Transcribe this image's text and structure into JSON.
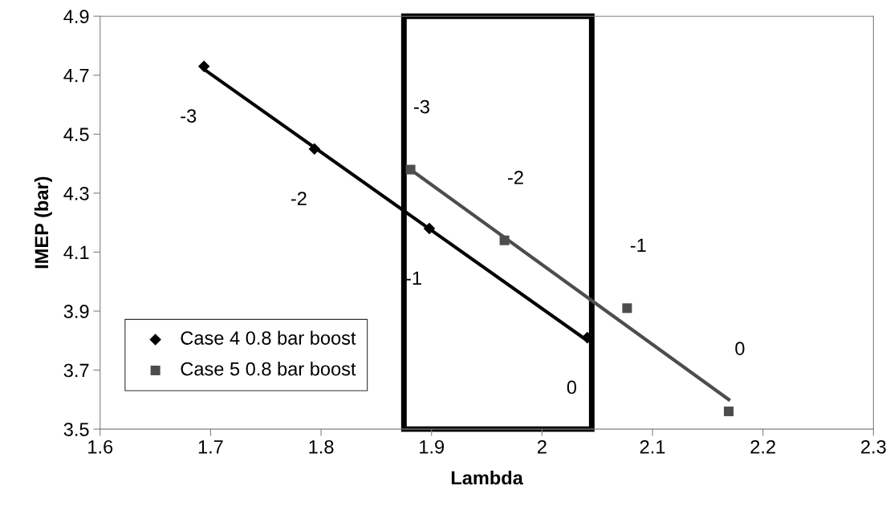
{
  "chart_data": {
    "type": "scatter",
    "xlabel": "Lambda",
    "ylabel": "IMEP (bar)",
    "xlim": [
      1.6,
      2.3
    ],
    "xticks": [
      1.6,
      1.7,
      1.8,
      1.9,
      {
        "value": 2.0,
        "label": "2"
      },
      2.1,
      2.2,
      2.3
    ],
    "ylim": [
      3.5,
      4.9
    ],
    "yticks": [
      3.5,
      3.7,
      3.9,
      4.1,
      4.3,
      4.5,
      4.7,
      4.9
    ],
    "grid": false,
    "legend": "bottom left",
    "series": [
      {
        "name": "Case 4 0.8 bar boost",
        "type": "scatter",
        "marker": "diamond",
        "color": "#000000",
        "x": [
          1.694,
          1.794,
          1.898,
          2.041
        ],
        "values": [
          4.73,
          4.45,
          4.18,
          3.81
        ]
      },
      {
        "name": "Case 5 0.8 bar boost",
        "type": "scatter",
        "marker": "square",
        "color": "#4d4d4d",
        "x": [
          1.881,
          1.966,
          2.077,
          2.169
        ],
        "values": [
          4.38,
          4.14,
          3.91,
          3.56
        ]
      },
      {
        "type": "line",
        "marker": "none",
        "color": "#000000",
        "x": [
          1.694,
          2.041
        ],
        "values": [
          4.72,
          3.8
        ]
      },
      {
        "type": "line",
        "marker": "none",
        "color": "#4d4d4d",
        "x": [
          1.881,
          2.169
        ],
        "values": [
          4.38,
          3.6
        ]
      }
    ],
    "bands": [
      {
        "axis": "x",
        "from": 1.875,
        "to": 2.045,
        "color": "#000000"
      }
    ],
    "annotations": [
      {
        "text": "-3",
        "x": 1.694,
        "y": 4.73
      },
      {
        "text": "-2",
        "x": 1.794,
        "y": 4.45
      },
      {
        "text": "-1",
        "x": 1.898,
        "y": 4.18
      },
      {
        "text": "0",
        "x": 2.041,
        "y": 3.81
      },
      {
        "text": "-3",
        "x": 1.881,
        "y": 4.38
      },
      {
        "text": "-2",
        "x": 1.966,
        "y": 4.14
      },
      {
        "text": "-1",
        "x": 2.077,
        "y": 3.91
      },
      {
        "text": "0",
        "x": 2.169,
        "y": 3.56
      }
    ]
  }
}
